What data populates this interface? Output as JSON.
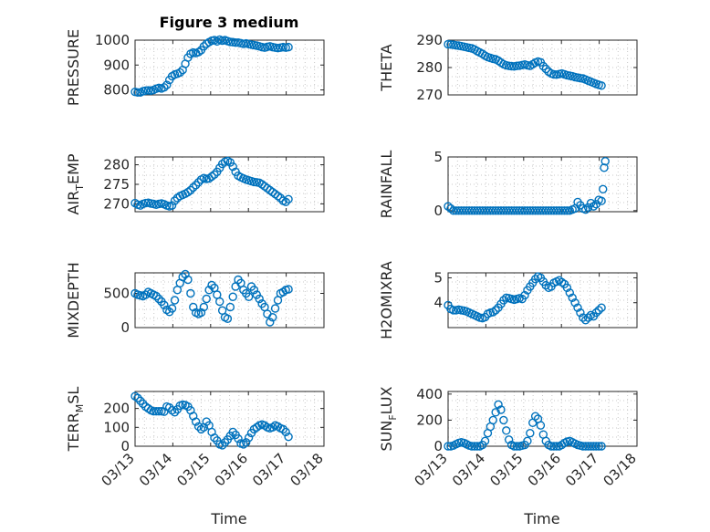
{
  "figure": {
    "title": "Figure 3 medium",
    "x_axis_label": "Time",
    "x_tick_labels": [
      "03/13",
      "03/14",
      "03/15",
      "03/16",
      "03/17",
      "03/18"
    ],
    "marker_color": "#0072bd"
  },
  "chart_data": [
    {
      "type": "scatter",
      "ylabel": "PRESSURE",
      "xlim": [
        0,
        5
      ],
      "ylim": [
        780,
        1000
      ],
      "yticks": [
        800,
        900,
        1000
      ],
      "x": [
        0,
        0.07,
        0.14,
        0.21,
        0.28,
        0.35,
        0.42,
        0.49,
        0.56,
        0.63,
        0.7,
        0.77,
        0.84,
        0.91,
        0.98,
        1.05,
        1.12,
        1.19,
        1.26,
        1.33,
        1.4,
        1.47,
        1.54,
        1.61,
        1.68,
        1.75,
        1.82,
        1.89,
        1.96,
        2.03,
        2.1,
        2.17,
        2.24,
        2.31,
        2.38,
        2.45,
        2.52,
        2.59,
        2.66,
        2.73,
        2.8,
        2.87,
        2.94,
        3.01,
        3.08,
        3.15,
        3.22,
        3.29,
        3.36,
        3.43,
        3.5,
        3.57,
        3.64,
        3.71,
        3.78,
        3.85,
        3.92,
        3.99,
        4.06
      ],
      "values": [
        792,
        790,
        790,
        795,
        797,
        798,
        797,
        800,
        805,
        808,
        806,
        810,
        820,
        840,
        855,
        862,
        865,
        870,
        880,
        905,
        930,
        945,
        950,
        948,
        952,
        960,
        975,
        985,
        992,
        998,
        1000,
        995,
        1002,
        998,
        1000,
        996,
        993,
        992,
        990,
        990,
        988,
        985,
        987,
        984,
        982,
        980,
        978,
        975,
        972,
        970,
        973,
        975,
        972,
        970,
        968,
        970,
        972,
        970,
        972
      ]
    },
    {
      "type": "scatter",
      "ylabel": "THETA",
      "xlim": [
        0,
        5
      ],
      "ylim": [
        270,
        290
      ],
      "yticks": [
        270,
        280,
        290
      ],
      "x": [
        0,
        0.07,
        0.14,
        0.21,
        0.28,
        0.35,
        0.42,
        0.49,
        0.56,
        0.63,
        0.7,
        0.77,
        0.84,
        0.91,
        0.98,
        1.05,
        1.12,
        1.19,
        1.26,
        1.33,
        1.4,
        1.47,
        1.54,
        1.61,
        1.68,
        1.75,
        1.82,
        1.89,
        1.96,
        2.03,
        2.1,
        2.17,
        2.24,
        2.31,
        2.38,
        2.45,
        2.52,
        2.59,
        2.66,
        2.73,
        2.8,
        2.87,
        2.94,
        3.01,
        3.08,
        3.15,
        3.22,
        3.29,
        3.36,
        3.43,
        3.5,
        3.57,
        3.64,
        3.71,
        3.78,
        3.85,
        3.92,
        3.99,
        4.06
      ],
      "values": [
        288.5,
        288.4,
        288.3,
        288.1,
        288,
        287.8,
        287.6,
        287.4,
        287.2,
        287,
        286.6,
        286,
        285.5,
        285,
        284.3,
        283.8,
        283.5,
        283.2,
        283,
        282.5,
        281.8,
        281.2,
        280.8,
        280.6,
        280.5,
        280.4,
        280.6,
        280.7,
        280.9,
        281.1,
        280.8,
        280.6,
        281.2,
        281.8,
        282.2,
        281.9,
        280.5,
        279.5,
        278.5,
        277.8,
        277.5,
        277.4,
        277.6,
        277.8,
        277.5,
        277.2,
        277,
        276.8,
        276.5,
        276.3,
        276.1,
        276,
        275.6,
        275.2,
        274.8,
        274.4,
        274,
        273.7,
        273.4
      ]
    },
    {
      "type": "scatter",
      "ylabel": "AIR_TEMP",
      "xlim": [
        0,
        5
      ],
      "ylim": [
        268,
        282
      ],
      "yticks": [
        270,
        275,
        280
      ],
      "x": [
        0,
        0.07,
        0.14,
        0.21,
        0.28,
        0.35,
        0.42,
        0.49,
        0.56,
        0.63,
        0.7,
        0.77,
        0.84,
        0.91,
        0.98,
        1.05,
        1.12,
        1.19,
        1.26,
        1.33,
        1.4,
        1.47,
        1.54,
        1.61,
        1.68,
        1.75,
        1.82,
        1.89,
        1.96,
        2.03,
        2.1,
        2.17,
        2.24,
        2.31,
        2.38,
        2.45,
        2.52,
        2.59,
        2.66,
        2.73,
        2.8,
        2.87,
        2.94,
        3.01,
        3.08,
        3.15,
        3.22,
        3.29,
        3.36,
        3.43,
        3.5,
        3.57,
        3.64,
        3.71,
        3.78,
        3.85,
        3.92,
        3.99,
        4.06
      ],
      "values": [
        270.2,
        269.8,
        269.6,
        270,
        270.2,
        270.3,
        270.1,
        270,
        269.8,
        270,
        270.1,
        269.9,
        269.6,
        269.4,
        269.6,
        270.8,
        271.5,
        272,
        272.3,
        272.6,
        273,
        273.5,
        274.2,
        274.8,
        275.5,
        276.2,
        276.6,
        276.4,
        276.5,
        277,
        277.5,
        278.2,
        279.2,
        280.2,
        280.8,
        281,
        280.6,
        279.5,
        278.2,
        277.2,
        276.8,
        276.5,
        276.2,
        276,
        275.8,
        275.6,
        275.5,
        275.4,
        275,
        274.5,
        274,
        273.5,
        273,
        272.5,
        272,
        271.5,
        270.8,
        270.5,
        271.2
      ]
    },
    {
      "type": "scatter",
      "ylabel": "RAINFALL",
      "xlim": [
        0,
        5
      ],
      "ylim": [
        -0.1,
        5
      ],
      "yticks": [
        0,
        5
      ],
      "x": [
        0,
        0.07,
        0.14,
        0.21,
        0.28,
        0.35,
        0.42,
        0.49,
        0.56,
        0.63,
        0.7,
        0.77,
        0.84,
        0.91,
        0.98,
        1.05,
        1.12,
        1.19,
        1.26,
        1.33,
        1.4,
        1.47,
        1.54,
        1.61,
        1.68,
        1.75,
        1.82,
        1.89,
        1.96,
        2.03,
        2.1,
        2.17,
        2.24,
        2.31,
        2.38,
        2.45,
        2.52,
        2.59,
        2.66,
        2.73,
        2.8,
        2.87,
        2.94,
        3.01,
        3.08,
        3.15,
        3.22,
        3.29,
        3.36,
        3.43,
        3.5,
        3.57,
        3.64,
        3.71,
        3.78,
        3.85,
        3.92,
        3.99,
        4.06,
        4.1,
        4.13,
        4.16
      ],
      "values": [
        0.4,
        0.2,
        0,
        0,
        0,
        0,
        0,
        0,
        0,
        0,
        0,
        0,
        0,
        0,
        0,
        0,
        0,
        0,
        0,
        0,
        0,
        0,
        0,
        0,
        0,
        0,
        0,
        0,
        0,
        0,
        0,
        0,
        0,
        0,
        0,
        0,
        0,
        0,
        0,
        0,
        0,
        0,
        0,
        0,
        0,
        0,
        0,
        0.1,
        0.2,
        0.8,
        0.5,
        0.2,
        0.1,
        0.3,
        0.7,
        0.4,
        0.6,
        1.0,
        0.9,
        2.0,
        4.0,
        4.6
      ]
    },
    {
      "type": "scatter",
      "ylabel": "MIXDEPTH",
      "xlim": [
        0,
        5
      ],
      "ylim": [
        0,
        800
      ],
      "yticks": [
        0,
        500
      ],
      "x": [
        0,
        0.07,
        0.14,
        0.21,
        0.28,
        0.35,
        0.42,
        0.49,
        0.56,
        0.63,
        0.7,
        0.77,
        0.84,
        0.91,
        0.98,
        1.05,
        1.12,
        1.19,
        1.26,
        1.33,
        1.4,
        1.47,
        1.54,
        1.61,
        1.68,
        1.75,
        1.82,
        1.89,
        1.96,
        2.03,
        2.1,
        2.17,
        2.24,
        2.31,
        2.38,
        2.45,
        2.52,
        2.59,
        2.66,
        2.73,
        2.8,
        2.87,
        2.94,
        3.01,
        3.08,
        3.15,
        3.22,
        3.29,
        3.36,
        3.43,
        3.5,
        3.57,
        3.64,
        3.71,
        3.78,
        3.85,
        3.92,
        3.99,
        4.06
      ],
      "values": [
        500,
        480,
        470,
        460,
        480,
        520,
        500,
        480,
        460,
        420,
        380,
        330,
        260,
        230,
        280,
        400,
        550,
        650,
        740,
        780,
        700,
        500,
        300,
        220,
        200,
        220,
        300,
        420,
        550,
        620,
        580,
        480,
        380,
        250,
        150,
        130,
        300,
        450,
        600,
        700,
        650,
        550,
        500,
        450,
        600,
        550,
        480,
        420,
        350,
        300,
        200,
        80,
        150,
        280,
        400,
        500,
        520,
        550,
        560
      ]
    },
    {
      "type": "scatter",
      "ylabel": "H2OMIXRA",
      "xlim": [
        0,
        5
      ],
      "ylim": [
        3,
        5.2
      ],
      "yticks": [
        4,
        5
      ],
      "x": [
        0,
        0.07,
        0.14,
        0.21,
        0.28,
        0.35,
        0.42,
        0.49,
        0.56,
        0.63,
        0.7,
        0.77,
        0.84,
        0.91,
        0.98,
        1.05,
        1.12,
        1.19,
        1.26,
        1.33,
        1.4,
        1.47,
        1.54,
        1.61,
        1.68,
        1.75,
        1.82,
        1.89,
        1.96,
        2.03,
        2.1,
        2.17,
        2.24,
        2.31,
        2.38,
        2.45,
        2.52,
        2.59,
        2.66,
        2.73,
        2.8,
        2.87,
        2.94,
        3.01,
        3.08,
        3.15,
        3.22,
        3.29,
        3.36,
        3.43,
        3.5,
        3.57,
        3.64,
        3.71,
        3.78,
        3.85,
        3.92,
        3.99,
        4.06
      ],
      "values": [
        3.9,
        3.75,
        3.7,
        3.7,
        3.72,
        3.7,
        3.68,
        3.65,
        3.6,
        3.55,
        3.5,
        3.45,
        3.4,
        3.38,
        3.42,
        3.55,
        3.6,
        3.62,
        3.7,
        3.8,
        3.95,
        4.1,
        4.2,
        4.18,
        4.15,
        4.12,
        4.15,
        4.18,
        4.15,
        4.3,
        4.5,
        4.65,
        4.8,
        4.95,
        5.05,
        5.0,
        4.85,
        4.7,
        4.6,
        4.65,
        4.8,
        4.85,
        4.9,
        4.82,
        4.75,
        4.6,
        4.4,
        4.2,
        4.0,
        3.8,
        3.6,
        3.4,
        3.3,
        3.4,
        3.5,
        3.45,
        3.6,
        3.7,
        3.8
      ]
    },
    {
      "type": "scatter",
      "ylabel": "TERR_MSL",
      "xlim": [
        0,
        5
      ],
      "ylim": [
        0,
        290
      ],
      "yticks": [
        0,
        100,
        200
      ],
      "x": [
        0,
        0.07,
        0.14,
        0.21,
        0.28,
        0.35,
        0.42,
        0.49,
        0.56,
        0.63,
        0.7,
        0.77,
        0.84,
        0.91,
        0.98,
        1.05,
        1.12,
        1.19,
        1.26,
        1.33,
        1.4,
        1.47,
        1.54,
        1.61,
        1.68,
        1.75,
        1.82,
        1.89,
        1.96,
        2.03,
        2.1,
        2.17,
        2.24,
        2.31,
        2.38,
        2.45,
        2.52,
        2.59,
        2.66,
        2.73,
        2.8,
        2.87,
        2.94,
        3.01,
        3.08,
        3.15,
        3.22,
        3.29,
        3.36,
        3.43,
        3.5,
        3.57,
        3.64,
        3.71,
        3.78,
        3.85,
        3.92,
        3.99,
        4.06
      ],
      "values": [
        265,
        255,
        240,
        225,
        210,
        200,
        190,
        185,
        185,
        185,
        185,
        183,
        210,
        205,
        190,
        180,
        195,
        215,
        220,
        218,
        210,
        190,
        160,
        130,
        105,
        90,
        100,
        130,
        110,
        75,
        45,
        30,
        10,
        5,
        20,
        35,
        55,
        75,
        60,
        40,
        15,
        10,
        20,
        45,
        70,
        90,
        100,
        110,
        115,
        110,
        100,
        95,
        100,
        110,
        105,
        95,
        90,
        75,
        50
      ]
    },
    {
      "type": "scatter",
      "ylabel": "SUN_FLUX",
      "xlim": [
        0,
        5
      ],
      "ylim": [
        0,
        420
      ],
      "yticks": [
        0,
        200,
        400
      ],
      "x": [
        0,
        0.07,
        0.14,
        0.21,
        0.28,
        0.35,
        0.42,
        0.49,
        0.56,
        0.63,
        0.7,
        0.77,
        0.84,
        0.91,
        0.98,
        1.05,
        1.12,
        1.19,
        1.26,
        1.33,
        1.4,
        1.47,
        1.54,
        1.61,
        1.68,
        1.75,
        1.82,
        1.89,
        1.96,
        2.03,
        2.1,
        2.17,
        2.24,
        2.31,
        2.38,
        2.45,
        2.52,
        2.59,
        2.66,
        2.73,
        2.8,
        2.87,
        2.94,
        3.01,
        3.08,
        3.15,
        3.22,
        3.29,
        3.36,
        3.43,
        3.5,
        3.57,
        3.64,
        3.71,
        3.78,
        3.85,
        3.92,
        3.99,
        4.06
      ],
      "values": [
        0,
        0,
        5,
        15,
        25,
        30,
        25,
        15,
        5,
        0,
        0,
        0,
        0,
        10,
        40,
        100,
        150,
        200,
        260,
        320,
        280,
        200,
        120,
        50,
        10,
        0,
        0,
        0,
        5,
        10,
        40,
        100,
        180,
        230,
        210,
        160,
        90,
        40,
        10,
        0,
        0,
        0,
        0,
        10,
        25,
        35,
        40,
        30,
        20,
        10,
        5,
        0,
        0,
        0,
        0,
        0,
        0,
        0,
        0
      ]
    }
  ]
}
